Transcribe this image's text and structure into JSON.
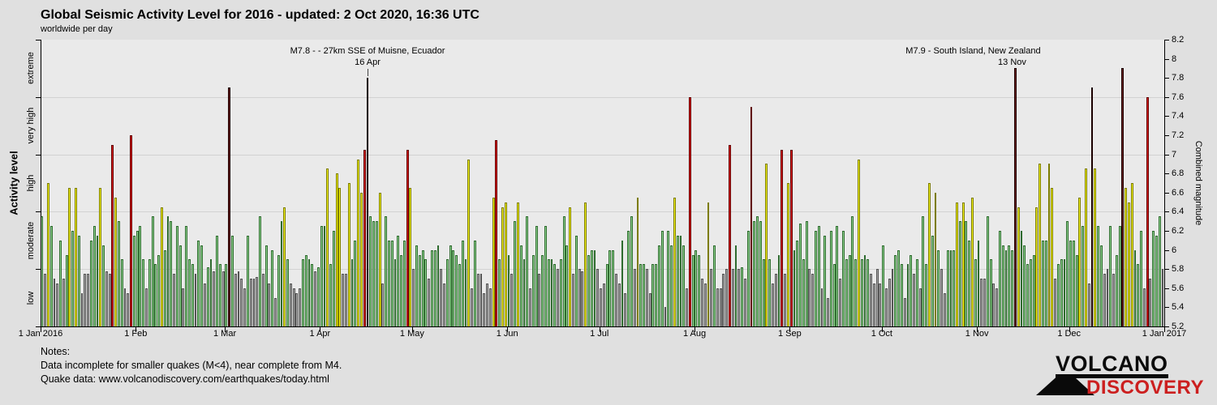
{
  "title": "Global Seismic Activity Level for 2016 - updated:  2 Oct 2020, 16:36 UTC",
  "subtitle": "worldwide per day",
  "left_axis": {
    "label": "Activity level",
    "categories": [
      "extreme",
      "very high",
      "high",
      "moderate",
      "low"
    ]
  },
  "right_axis": {
    "label": "Combined magnitude",
    "tick_labels": [
      "8.2",
      "8",
      "7.8",
      "7.6",
      "7.4",
      "7.2",
      "7",
      "6.8",
      "6.6",
      "6.4",
      "6.2",
      "6",
      "5.8",
      "5.6",
      "5.4",
      "5.2"
    ]
  },
  "x_axis": {
    "month_labels": [
      {
        "day": 1,
        "label": "1 Jan 2016"
      },
      {
        "day": 32,
        "label": "1 Feb"
      },
      {
        "day": 61,
        "label": "1 Mar"
      },
      {
        "day": 92,
        "label": "1 Apr"
      },
      {
        "day": 122,
        "label": "1 May"
      },
      {
        "day": 153,
        "label": "1 Jun"
      },
      {
        "day": 183,
        "label": "1 Jul"
      },
      {
        "day": 214,
        "label": "1 Aug"
      },
      {
        "day": 245,
        "label": "1 Sep"
      },
      {
        "day": 275,
        "label": "1 Oct"
      },
      {
        "day": 306,
        "label": "1 Nov"
      },
      {
        "day": 336,
        "label": "1 Dec"
      },
      {
        "day": 367,
        "label": "1 Jan 2017"
      }
    ]
  },
  "annotations": [
    {
      "line1": "M7.8 - - 27km SSE of Muisne, Ecuador",
      "line2": "16 Apr",
      "day": 107
    },
    {
      "line1": "M7.9 - South Island, New Zealand",
      "line2": "13 Nov",
      "day": 318
    }
  ],
  "notes": {
    "heading": "Notes:",
    "line1": "Data incomplete for smaller quakes (M<4), near complete from M4.",
    "line2": "Quake data: www.volcanodiscovery.com/earthquakes/today.html"
  },
  "logo": {
    "line1": "VOLCANO",
    "line2": "DISCOVERY",
    "accent_color": "#cc1f1f"
  },
  "chart_data": {
    "type": "bar",
    "x_unit": "day of 2016",
    "n_days": 366,
    "y_range": [
      5.2,
      8.2
    ],
    "gridlines_at": [
      7.6,
      7.0,
      6.4,
      5.8
    ],
    "bands": [
      {
        "name": "low",
        "max": 5.8,
        "fill": "#a8a8a8",
        "border": "#555555"
      },
      {
        "name": "moderate",
        "max": 6.4,
        "fill": "#93d693",
        "border": "#2f6b2f"
      },
      {
        "name": "high",
        "max": 7.0,
        "fill": "#f6f600",
        "border": "#7c7c00"
      },
      {
        "name": "very high",
        "max": 7.6,
        "fill": "#e11414",
        "border": "#600000"
      },
      {
        "name": "extreme",
        "max": 8.2,
        "fill": "#6f1414",
        "border": "#1a0000"
      }
    ],
    "values": [
      6.35,
      5.75,
      6.7,
      6.25,
      5.7,
      5.65,
      6.1,
      5.7,
      5.95,
      6.65,
      6.2,
      6.65,
      6.15,
      5.55,
      5.75,
      5.75,
      6.1,
      6.25,
      6.15,
      6.65,
      6.05,
      5.78,
      5.75,
      7.1,
      6.55,
      6.3,
      5.9,
      5.6,
      5.55,
      7.2,
      6.15,
      6.2,
      6.25,
      5.9,
      5.6,
      5.9,
      6.35,
      5.85,
      5.95,
      6.45,
      6.0,
      6.35,
      6.3,
      5.75,
      6.25,
      6.05,
      5.6,
      6.25,
      5.9,
      5.85,
      5.75,
      6.1,
      6.05,
      5.65,
      5.82,
      5.9,
      5.78,
      6.15,
      5.85,
      5.78,
      5.85,
      7.7,
      6.15,
      5.75,
      5.78,
      5.7,
      5.6,
      6.15,
      5.7,
      5.7,
      5.72,
      6.35,
      5.75,
      6.05,
      5.65,
      6.0,
      5.5,
      5.95,
      6.3,
      6.45,
      5.9,
      5.65,
      5.6,
      5.55,
      5.6,
      5.9,
      5.95,
      5.9,
      5.85,
      5.78,
      5.82,
      6.25,
      6.25,
      6.85,
      5.85,
      6.2,
      6.8,
      6.65,
      5.75,
      5.75,
      6.7,
      5.9,
      6.1,
      6.95,
      6.6,
      7.05,
      7.8,
      6.35,
      6.3,
      6.3,
      6.6,
      5.65,
      6.35,
      6.1,
      6.1,
      5.9,
      6.15,
      5.95,
      6.1,
      7.05,
      6.65,
      5.8,
      6.05,
      5.95,
      6.0,
      5.9,
      5.7,
      6.0,
      6.0,
      6.05,
      5.8,
      5.65,
      5.9,
      6.05,
      6.0,
      5.95,
      5.85,
      6.1,
      5.9,
      6.95,
      5.6,
      6.1,
      5.75,
      5.75,
      5.55,
      5.65,
      5.6,
      6.55,
      7.15,
      5.9,
      6.45,
      6.5,
      5.95,
      5.75,
      6.3,
      6.5,
      6.05,
      5.9,
      6.35,
      5.6,
      5.95,
      6.25,
      5.75,
      5.95,
      6.25,
      5.9,
      5.9,
      5.85,
      5.8,
      5.9,
      6.35,
      6.05,
      6.45,
      5.75,
      6.15,
      5.8,
      5.78,
      6.5,
      5.95,
      6.0,
      6.0,
      5.8,
      5.6,
      5.65,
      5.85,
      6.0,
      6.0,
      5.75,
      5.65,
      6.1,
      5.55,
      6.2,
      6.35,
      5.8,
      6.55,
      5.85,
      5.85,
      5.8,
      5.55,
      5.85,
      5.85,
      6.05,
      6.2,
      5.4,
      6.2,
      6.05,
      6.55,
      6.15,
      6.15,
      6.05,
      5.6,
      7.6,
      5.95,
      6.0,
      5.95,
      5.7,
      5.65,
      6.5,
      5.8,
      6.05,
      5.6,
      5.6,
      5.75,
      5.8,
      7.1,
      5.8,
      6.05,
      5.8,
      5.82,
      5.7,
      6.2,
      7.5,
      6.3,
      6.35,
      6.3,
      5.9,
      6.9,
      5.9,
      5.65,
      5.75,
      5.95,
      7.05,
      5.75,
      6.7,
      7.05,
      6.0,
      6.1,
      6.28,
      5.9,
      6.3,
      5.8,
      5.75,
      6.2,
      6.25,
      5.6,
      6.15,
      5.5,
      6.2,
      5.85,
      6.25,
      5.7,
      6.2,
      5.9,
      5.95,
      6.35,
      5.9,
      6.95,
      5.9,
      5.95,
      5.9,
      5.75,
      5.65,
      5.8,
      5.65,
      6.05,
      5.6,
      5.7,
      5.8,
      5.95,
      6.0,
      5.85,
      5.5,
      5.85,
      5.95,
      5.75,
      5.9,
      5.6,
      6.35,
      5.85,
      6.7,
      6.15,
      6.6,
      6.0,
      5.8,
      5.55,
      6.0,
      6.0,
      6.0,
      6.5,
      6.3,
      6.5,
      6.3,
      6.1,
      6.55,
      5.9,
      6.1,
      5.7,
      5.7,
      6.35,
      5.9,
      5.65,
      5.6,
      6.2,
      6.05,
      6.0,
      6.05,
      6.0,
      7.9,
      6.45,
      6.2,
      6.05,
      5.85,
      5.9,
      5.95,
      6.45,
      6.9,
      6.1,
      6.1,
      6.9,
      6.65,
      5.7,
      5.85,
      5.9,
      5.9,
      6.3,
      6.1,
      6.1,
      5.95,
      6.55,
      6.25,
      6.85,
      5.65,
      7.7,
      6.85,
      6.25,
      6.05,
      5.75,
      5.8,
      6.25,
      5.75,
      5.95,
      6.25,
      7.9,
      6.65,
      6.5,
      6.7,
      6.0,
      5.85,
      6.2,
      5.6,
      7.6,
      5.7,
      6.2,
      6.15,
      6.35,
      5.8
    ]
  }
}
